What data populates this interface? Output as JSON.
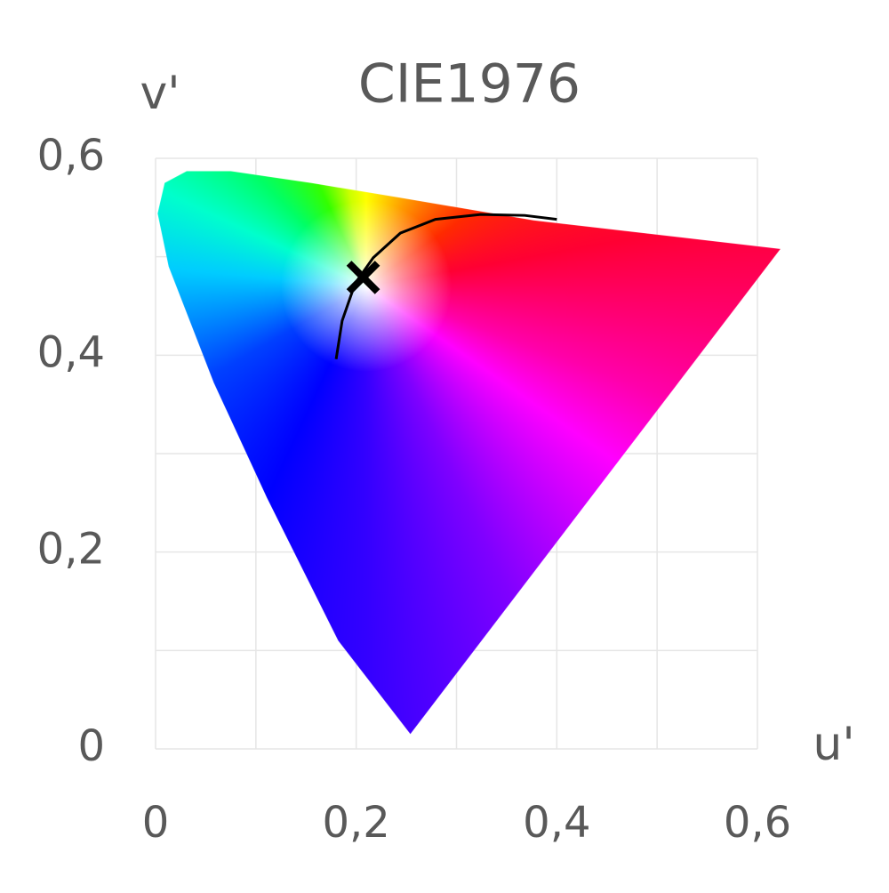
{
  "chart_data": {
    "type": "line",
    "title": "CIE1976",
    "xlabel": "u'",
    "ylabel": "v'",
    "xlim": [
      0,
      0.6
    ],
    "ylim": [
      0,
      0.6
    ],
    "xticks": [
      0,
      {
        "value": 0.2,
        "label": "0,2"
      },
      {
        "value": 0.4,
        "label": "0,4"
      },
      {
        "value": 0.6,
        "label": "0,6"
      }
    ],
    "yticks": [
      0,
      {
        "value": 0.2,
        "label": "0,2"
      },
      {
        "value": 0.4,
        "label": "0,4"
      },
      {
        "value": 0.6,
        "label": "0,6"
      }
    ],
    "xgrid": [
      0,
      0.1,
      0.2,
      0.3,
      0.4,
      0.5,
      0.6
    ],
    "ygrid": [
      0,
      0.1,
      0.2,
      0.3,
      0.4,
      0.5,
      0.6
    ],
    "grid": true,
    "series": [
      {
        "mark": "spectrum",
        "x": [
          0.254,
          0.182,
          0.111,
          0.058,
          0.013,
          0.002,
          0.009,
          0.031,
          0.075,
          0.155,
          0.244,
          0.377,
          0.623
        ],
        "values": [
          0.015,
          0.11,
          0.255,
          0.372,
          0.49,
          0.544,
          0.575,
          0.587,
          0.587,
          0.575,
          0.56,
          0.537,
          0.508
        ]
      },
      {
        "mark": "line",
        "color": "#000000",
        "x": [
          0.18,
          0.186,
          0.199,
          0.217,
          0.244,
          0.279,
          0.324,
          0.368,
          0.4
        ],
        "values": [
          0.396,
          0.435,
          0.473,
          0.499,
          0.524,
          0.538,
          0.543,
          0.542,
          0.538
        ]
      },
      {
        "mark": "cross",
        "color": "#000000",
        "x": [
          0.207
        ],
        "values": [
          0.479
        ]
      }
    ]
  }
}
